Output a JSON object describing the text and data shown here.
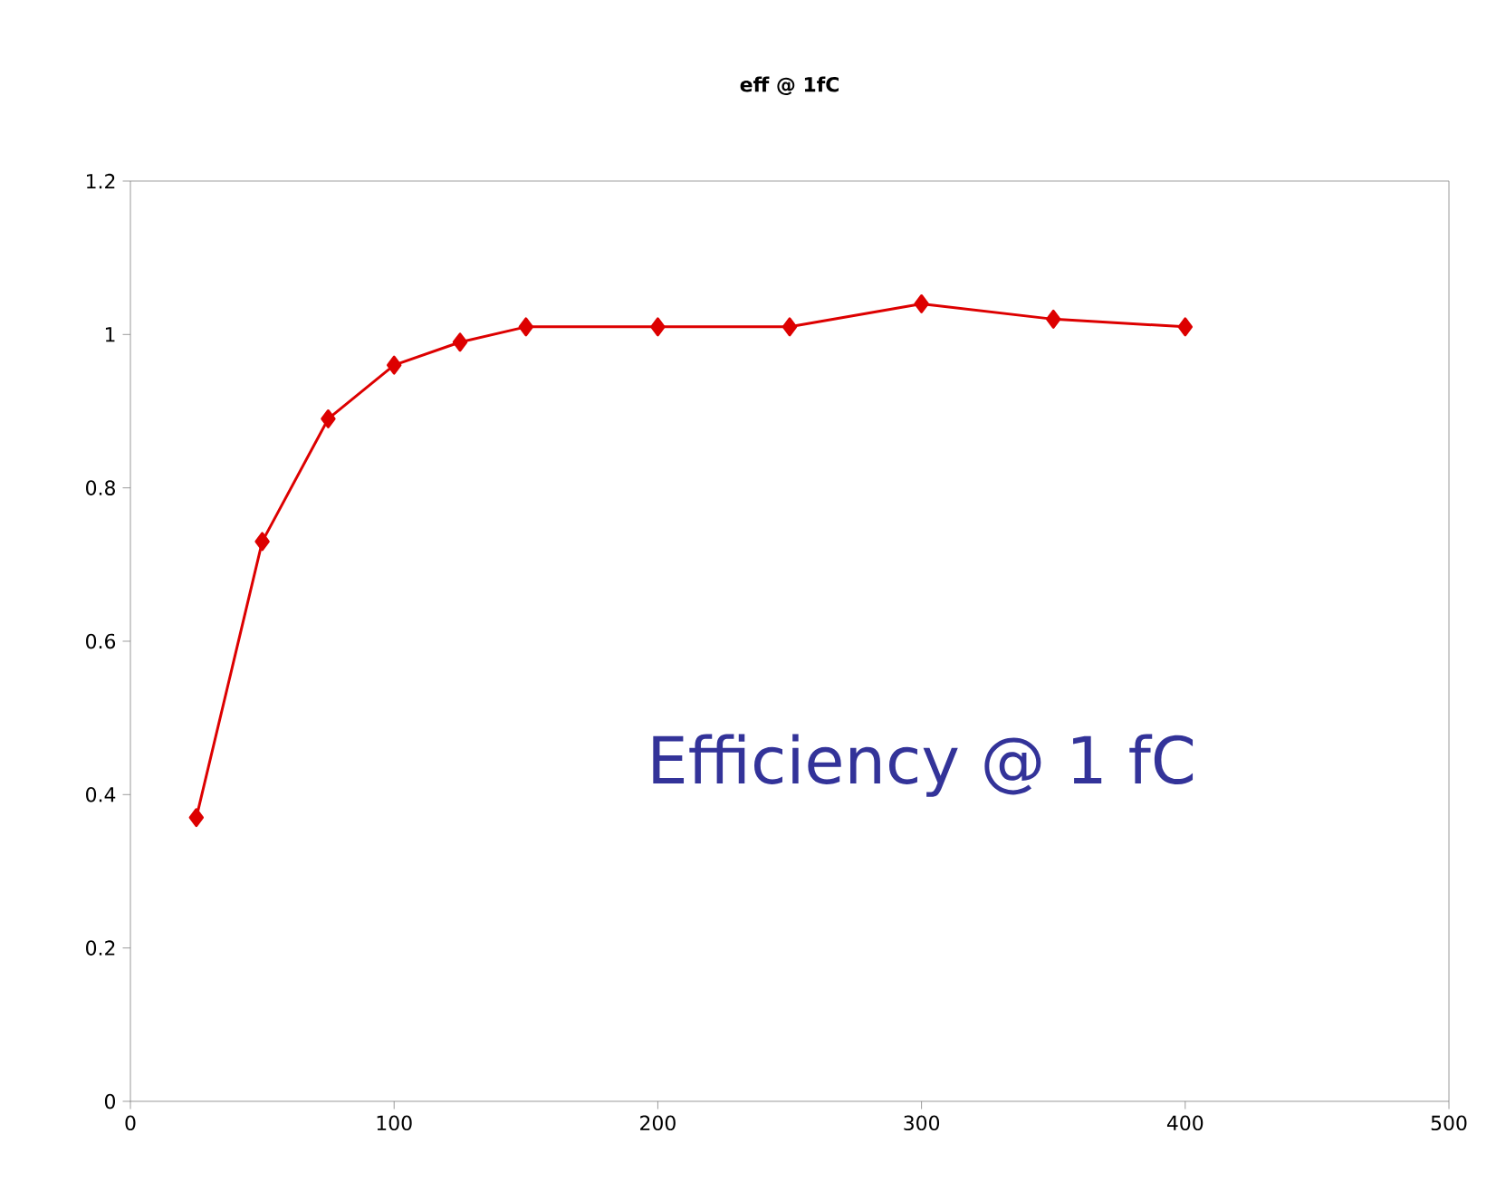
{
  "chart_data": {
    "type": "line",
    "title": "eff @ 1fC",
    "x": [
      25,
      50,
      75,
      100,
      125,
      150,
      200,
      250,
      300,
      350,
      400
    ],
    "series": [
      {
        "color": "#dd0000",
        "values": [
          0.37,
          0.73,
          0.89,
          0.96,
          0.99,
          1.01,
          1.01,
          1.01,
          1.04,
          1.02,
          1.01
        ]
      }
    ],
    "xlim": [
      0,
      500
    ],
    "xticks": [
      0,
      100,
      200,
      300,
      400,
      500
    ],
    "ylim": [
      0,
      1.2
    ],
    "yticks": [
      0,
      0.2,
      0.4,
      0.6,
      0.8,
      1,
      1.2
    ],
    "marker": "diamond",
    "line_style": "solid",
    "grid": false,
    "annotations": [
      "Efficiency @ 1 fC"
    ]
  }
}
